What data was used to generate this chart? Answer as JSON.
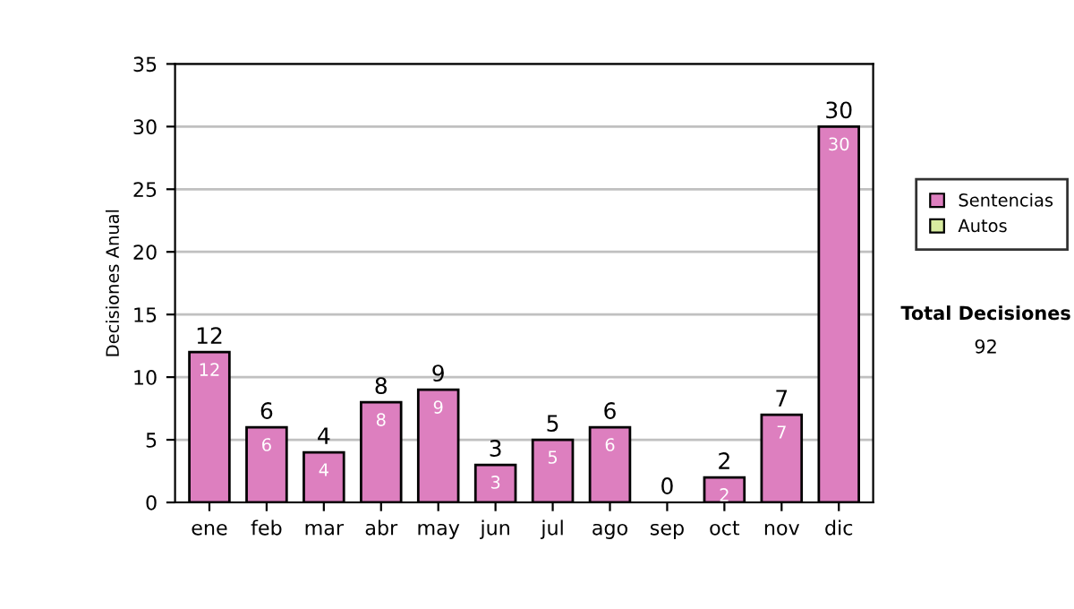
{
  "chart_data": {
    "type": "bar",
    "ylabel": "Decisiones Anual",
    "categories": [
      "ene",
      "feb",
      "mar",
      "abr",
      "may",
      "jun",
      "jul",
      "ago",
      "sep",
      "oct",
      "nov",
      "dic"
    ],
    "series": [
      {
        "name": "Sentencias",
        "color": "#dd7fbf",
        "values": [
          12,
          6,
          4,
          8,
          9,
          3,
          5,
          6,
          0,
          2,
          7,
          30
        ],
        "value_labels": [
          "12",
          "6",
          "4",
          "8",
          "9",
          "3",
          "5",
          "6",
          null,
          "2",
          "7",
          "30"
        ]
      },
      {
        "name": "Autos",
        "color": "#d8eca0",
        "values": [
          null,
          null,
          null,
          null,
          null,
          null,
          null,
          null,
          null,
          null,
          null,
          null
        ]
      }
    ],
    "stacked": true,
    "totals": [
      "12",
      "6",
      "4",
      "8",
      "9",
      "3",
      "5",
      "6",
      "0",
      "2",
      "7",
      "30"
    ],
    "ylim": [
      0,
      35
    ],
    "yticks": [
      0,
      5,
      10,
      15,
      20,
      25,
      30,
      35
    ],
    "grid": "y",
    "legend": "right",
    "annotations": [
      "Total Decisiones",
      "92"
    ]
  }
}
